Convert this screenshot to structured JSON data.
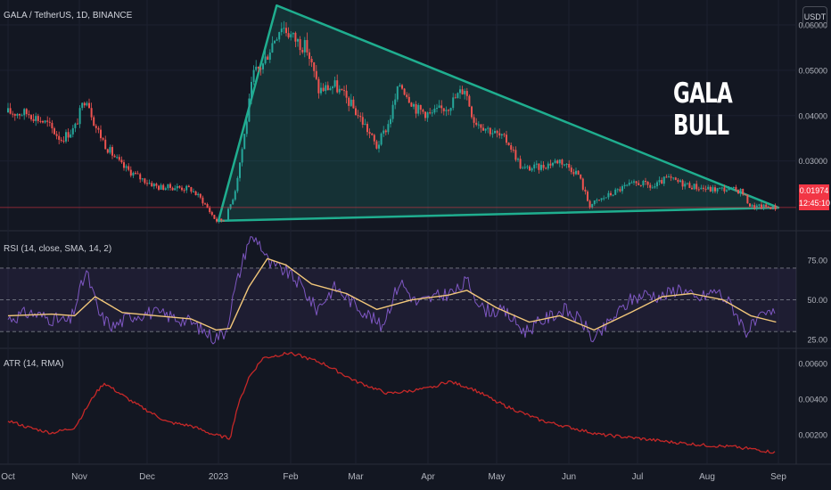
{
  "symbol": "GALA / TetherUS, 1D, BINANCE",
  "currency_button": "USDT",
  "annotation": "GALA BULL",
  "last_price": "0.01974",
  "countdown": "12:45:10",
  "rsi_title": "RSI (14, close, SMA, 14, 2)",
  "atr_title": "ATR (14, RMA)",
  "colors": {
    "background": "#131722",
    "up": "#26a69a",
    "down": "#ef5350",
    "triangle": "#1fae8f",
    "rsi": "#7e57c2",
    "rsi_ma": "#f2c77a",
    "atr": "#c62828",
    "price_line": "#f23645"
  },
  "chart_data": [
    {
      "type": "candlestick",
      "title": "GALA / TetherUS, 1D, BINANCE",
      "x_ticks": [
        "Oct",
        "Nov",
        "Dec",
        "2023",
        "Feb",
        "Mar",
        "Apr",
        "May",
        "Jun",
        "Jul",
        "Aug",
        "Sep"
      ],
      "y_ticks": [
        "0.06000",
        "0.05000",
        "0.04000",
        "0.03000"
      ],
      "ylim": [
        0.0148,
        0.0655
      ],
      "current_price": 0.01974,
      "close": [
        {
          "d": "2022-10-01",
          "v": 0.0407
        },
        {
          "d": "2022-10-10",
          "v": 0.0405
        },
        {
          "d": "2022-10-18",
          "v": 0.0382
        },
        {
          "d": "2022-10-24",
          "v": 0.0348
        },
        {
          "d": "2022-10-30",
          "v": 0.0372
        },
        {
          "d": "2022-11-04",
          "v": 0.0446
        },
        {
          "d": "2022-11-08",
          "v": 0.0378
        },
        {
          "d": "2022-11-13",
          "v": 0.0331
        },
        {
          "d": "2022-11-20",
          "v": 0.0288
        },
        {
          "d": "2022-11-28",
          "v": 0.0262
        },
        {
          "d": "2022-12-06",
          "v": 0.0242
        },
        {
          "d": "2022-12-14",
          "v": 0.0242
        },
        {
          "d": "2022-12-20",
          "v": 0.0238
        },
        {
          "d": "2022-12-25",
          "v": 0.0213
        },
        {
          "d": "2022-12-31",
          "v": 0.0168
        },
        {
          "d": "2023-01-04",
          "v": 0.0171
        },
        {
          "d": "2023-01-08",
          "v": 0.0232
        },
        {
          "d": "2023-01-12",
          "v": 0.0352
        },
        {
          "d": "2023-01-16",
          "v": 0.0491
        },
        {
          "d": "2023-01-20",
          "v": 0.0512
        },
        {
          "d": "2023-01-25",
          "v": 0.0571
        },
        {
          "d": "2023-01-28",
          "v": 0.0601
        },
        {
          "d": "2023-02-02",
          "v": 0.0572
        },
        {
          "d": "2023-02-08",
          "v": 0.0548
        },
        {
          "d": "2023-02-13",
          "v": 0.0456
        },
        {
          "d": "2023-02-20",
          "v": 0.0466
        },
        {
          "d": "2023-02-26",
          "v": 0.0431
        },
        {
          "d": "2023-03-05",
          "v": 0.0378
        },
        {
          "d": "2023-03-10",
          "v": 0.0331
        },
        {
          "d": "2023-03-15",
          "v": 0.0382
        },
        {
          "d": "2023-03-20",
          "v": 0.0472
        },
        {
          "d": "2023-03-27",
          "v": 0.0415
        },
        {
          "d": "2023-04-02",
          "v": 0.0402
        },
        {
          "d": "2023-04-10",
          "v": 0.0422
        },
        {
          "d": "2023-04-17",
          "v": 0.0462
        },
        {
          "d": "2023-04-21",
          "v": 0.0391
        },
        {
          "d": "2023-04-28",
          "v": 0.0368
        },
        {
          "d": "2023-05-06",
          "v": 0.0342
        },
        {
          "d": "2023-05-12",
          "v": 0.0282
        },
        {
          "d": "2023-05-20",
          "v": 0.0287
        },
        {
          "d": "2023-05-28",
          "v": 0.0302
        },
        {
          "d": "2023-06-05",
          "v": 0.0272
        },
        {
          "d": "2023-06-10",
          "v": 0.0202
        },
        {
          "d": "2023-06-16",
          "v": 0.0218
        },
        {
          "d": "2023-06-25",
          "v": 0.0242
        },
        {
          "d": "2023-07-02",
          "v": 0.0252
        },
        {
          "d": "2023-07-08",
          "v": 0.0241
        },
        {
          "d": "2023-07-14",
          "v": 0.0262
        },
        {
          "d": "2023-07-20",
          "v": 0.0252
        },
        {
          "d": "2023-07-26",
          "v": 0.0244
        },
        {
          "d": "2023-08-02",
          "v": 0.0237
        },
        {
          "d": "2023-08-09",
          "v": 0.0238
        },
        {
          "d": "2023-08-16",
          "v": 0.0234
        },
        {
          "d": "2023-08-20",
          "v": 0.0199
        },
        {
          "d": "2023-08-28",
          "v": 0.0199
        },
        {
          "d": "2023-08-31",
          "v": 0.0197
        }
      ],
      "triangle": {
        "apex_top": {
          "d": "2023-01-26",
          "v": 0.0643
        },
        "apex_right": {
          "d": "2023-09-01",
          "v": 0.0197
        },
        "base_left": {
          "d": "2023-01-01",
          "v": 0.0168
        }
      }
    },
    {
      "type": "line",
      "title": "RSI (14, close, SMA, 14, 2)",
      "y_ticks": [
        "75.00",
        "50.00",
        "25.00"
      ],
      "ylim": [
        20,
        93
      ],
      "bands": [
        70,
        50,
        30
      ],
      "series": [
        {
          "data": [
            {
              "d": "2022-10-01",
              "v": 38
            },
            {
              "d": "2022-10-10",
              "v": 42
            },
            {
              "d": "2022-10-20",
              "v": 38
            },
            {
              "d": "2022-10-28",
              "v": 36
            },
            {
              "d": "2022-11-04",
              "v": 68
            },
            {
              "d": "2022-11-10",
              "v": 40
            },
            {
              "d": "2022-11-16",
              "v": 33
            },
            {
              "d": "2022-11-24",
              "v": 40
            },
            {
              "d": "2022-12-02",
              "v": 42
            },
            {
              "d": "2022-12-10",
              "v": 40
            },
            {
              "d": "2022-12-20",
              "v": 36
            },
            {
              "d": "2022-12-30",
              "v": 26
            },
            {
              "d": "2023-01-04",
              "v": 30
            },
            {
              "d": "2023-01-08",
              "v": 56
            },
            {
              "d": "2023-01-14",
              "v": 88
            },
            {
              "d": "2023-01-18",
              "v": 88
            },
            {
              "d": "2023-01-23",
              "v": 72
            },
            {
              "d": "2023-01-30",
              "v": 68
            },
            {
              "d": "2023-02-05",
              "v": 60
            },
            {
              "d": "2023-02-12",
              "v": 44
            },
            {
              "d": "2023-02-20",
              "v": 58
            },
            {
              "d": "2023-02-28",
              "v": 48
            },
            {
              "d": "2023-03-07",
              "v": 40
            },
            {
              "d": "2023-03-12",
              "v": 33
            },
            {
              "d": "2023-03-20",
              "v": 62
            },
            {
              "d": "2023-03-27",
              "v": 48
            },
            {
              "d": "2023-04-05",
              "v": 52
            },
            {
              "d": "2023-04-14",
              "v": 56
            },
            {
              "d": "2023-04-18",
              "v": 62
            },
            {
              "d": "2023-04-25",
              "v": 44
            },
            {
              "d": "2023-05-05",
              "v": 42
            },
            {
              "d": "2023-05-13",
              "v": 30
            },
            {
              "d": "2023-05-22",
              "v": 38
            },
            {
              "d": "2023-05-30",
              "v": 44
            },
            {
              "d": "2023-06-07",
              "v": 36
            },
            {
              "d": "2023-06-12",
              "v": 24
            },
            {
              "d": "2023-06-20",
              "v": 38
            },
            {
              "d": "2023-06-28",
              "v": 50
            },
            {
              "d": "2023-07-05",
              "v": 54
            },
            {
              "d": "2023-07-12",
              "v": 52
            },
            {
              "d": "2023-07-20",
              "v": 58
            },
            {
              "d": "2023-07-27",
              "v": 50
            },
            {
              "d": "2023-08-05",
              "v": 56
            },
            {
              "d": "2023-08-12",
              "v": 46
            },
            {
              "d": "2023-08-18",
              "v": 30
            },
            {
              "d": "2023-08-26",
              "v": 40
            },
            {
              "d": "2023-08-31",
              "v": 42
            }
          ]
        },
        {
          "data": [
            {
              "d": "2022-10-01",
              "v": 40
            },
            {
              "d": "2022-10-20",
              "v": 41
            },
            {
              "d": "2022-10-30",
              "v": 40
            },
            {
              "d": "2022-11-08",
              "v": 52
            },
            {
              "d": "2022-11-20",
              "v": 42
            },
            {
              "d": "2022-12-05",
              "v": 40
            },
            {
              "d": "2022-12-20",
              "v": 38
            },
            {
              "d": "2022-12-31",
              "v": 31
            },
            {
              "d": "2023-01-06",
              "v": 32
            },
            {
              "d": "2023-01-14",
              "v": 58
            },
            {
              "d": "2023-01-22",
              "v": 76
            },
            {
              "d": "2023-01-30",
              "v": 72
            },
            {
              "d": "2023-02-10",
              "v": 60
            },
            {
              "d": "2023-02-25",
              "v": 54
            },
            {
              "d": "2023-03-10",
              "v": 44
            },
            {
              "d": "2023-03-25",
              "v": 50
            },
            {
              "d": "2023-04-10",
              "v": 53
            },
            {
              "d": "2023-04-18",
              "v": 56
            },
            {
              "d": "2023-05-01",
              "v": 45
            },
            {
              "d": "2023-05-15",
              "v": 36
            },
            {
              "d": "2023-05-28",
              "v": 40
            },
            {
              "d": "2023-06-12",
              "v": 31
            },
            {
              "d": "2023-06-28",
              "v": 42
            },
            {
              "d": "2023-07-12",
              "v": 52
            },
            {
              "d": "2023-07-25",
              "v": 54
            },
            {
              "d": "2023-08-08",
              "v": 50
            },
            {
              "d": "2023-08-20",
              "v": 40
            },
            {
              "d": "2023-08-31",
              "v": 36
            }
          ]
        }
      ]
    },
    {
      "type": "line",
      "title": "ATR (14, RMA)",
      "y_ticks": [
        "0.00600",
        "0.00400",
        "0.00200"
      ],
      "ylim": [
        0.0004,
        0.0068
      ],
      "series": [
        {
          "data": [
            {
              "d": "2022-10-01",
              "v": 0.0028
            },
            {
              "d": "2022-10-10",
              "v": 0.0024
            },
            {
              "d": "2022-10-20",
              "v": 0.0021
            },
            {
              "d": "2022-10-30",
              "v": 0.0024
            },
            {
              "d": "2022-11-08",
              "v": 0.0043
            },
            {
              "d": "2022-11-12",
              "v": 0.0049
            },
            {
              "d": "2022-11-25",
              "v": 0.0038
            },
            {
              "d": "2022-12-10",
              "v": 0.0027
            },
            {
              "d": "2022-12-20",
              "v": 0.0025
            },
            {
              "d": "2022-12-30",
              "v": 0.002
            },
            {
              "d": "2023-01-06",
              "v": 0.0018
            },
            {
              "d": "2023-01-09",
              "v": 0.0035
            },
            {
              "d": "2023-01-14",
              "v": 0.0052
            },
            {
              "d": "2023-01-20",
              "v": 0.0063
            },
            {
              "d": "2023-02-01",
              "v": 0.0066
            },
            {
              "d": "2023-02-15",
              "v": 0.006
            },
            {
              "d": "2023-03-01",
              "v": 0.005
            },
            {
              "d": "2023-03-15",
              "v": 0.0043
            },
            {
              "d": "2023-04-01",
              "v": 0.0046
            },
            {
              "d": "2023-04-10",
              "v": 0.005
            },
            {
              "d": "2023-04-20",
              "v": 0.0046
            },
            {
              "d": "2023-05-05",
              "v": 0.0036
            },
            {
              "d": "2023-05-20",
              "v": 0.0028
            },
            {
              "d": "2023-06-05",
              "v": 0.0023
            },
            {
              "d": "2023-06-15",
              "v": 0.002
            },
            {
              "d": "2023-07-01",
              "v": 0.0018
            },
            {
              "d": "2023-07-15",
              "v": 0.0016
            },
            {
              "d": "2023-08-01",
              "v": 0.0014
            },
            {
              "d": "2023-08-15",
              "v": 0.0013
            },
            {
              "d": "2023-08-31",
              "v": 0.001
            }
          ]
        }
      ]
    }
  ]
}
